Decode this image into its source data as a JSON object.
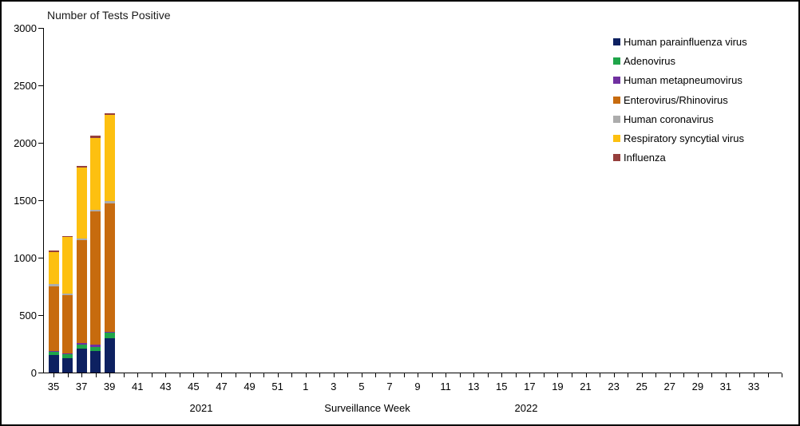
{
  "chart_data": {
    "type": "bar",
    "stacked": true,
    "title": "Number of Tests Positive",
    "xlabel": "Surveillance Week",
    "ylabel": "Number of Tests Positive",
    "ylim": [
      0,
      3000
    ],
    "yticks": [
      0,
      500,
      1000,
      1500,
      2000,
      2500,
      3000
    ],
    "grid": false,
    "legend_position": "top-right",
    "categories": [
      "35",
      "36",
      "37",
      "38",
      "39"
    ],
    "series": [
      {
        "name": "Human parainfluenza virus",
        "color": "#0D2161",
        "values": [
          150,
          125,
          205,
          185,
          300
        ]
      },
      {
        "name": "Adenovirus",
        "color": "#1FA54A",
        "values": [
          35,
          40,
          40,
          40,
          45
        ]
      },
      {
        "name": "Human metapneumovirus",
        "color": "#7030A0",
        "values": [
          5,
          5,
          15,
          15,
          10
        ]
      },
      {
        "name": "Enterovirus/Rhinovirus",
        "color": "#C76B0E",
        "values": [
          560,
          505,
          890,
          1160,
          1115
        ]
      },
      {
        "name": "Human coronavirus",
        "color": "#ACACAC",
        "values": [
          20,
          15,
          15,
          15,
          20
        ]
      },
      {
        "name": "Respiratory syncytial virus",
        "color": "#FDC010",
        "values": [
          280,
          490,
          620,
          630,
          755
        ]
      },
      {
        "name": "Influenza",
        "color": "#963F3C",
        "values": [
          10,
          10,
          15,
          15,
          15
        ]
      }
    ],
    "x_axis": {
      "visible_week_labels": [
        "35",
        "37",
        "39",
        "41",
        "43",
        "45",
        "47",
        "49",
        "51",
        "1",
        "3",
        "5",
        "7",
        "9",
        "11",
        "13",
        "15",
        "17",
        "19",
        "21",
        "23",
        "25",
        "27",
        "29",
        "31",
        "33"
      ],
      "total_week_slots": 53,
      "year_left": "2021",
      "year_right": "2022"
    },
    "axis_color": "#000000",
    "text_color": "#000000"
  }
}
